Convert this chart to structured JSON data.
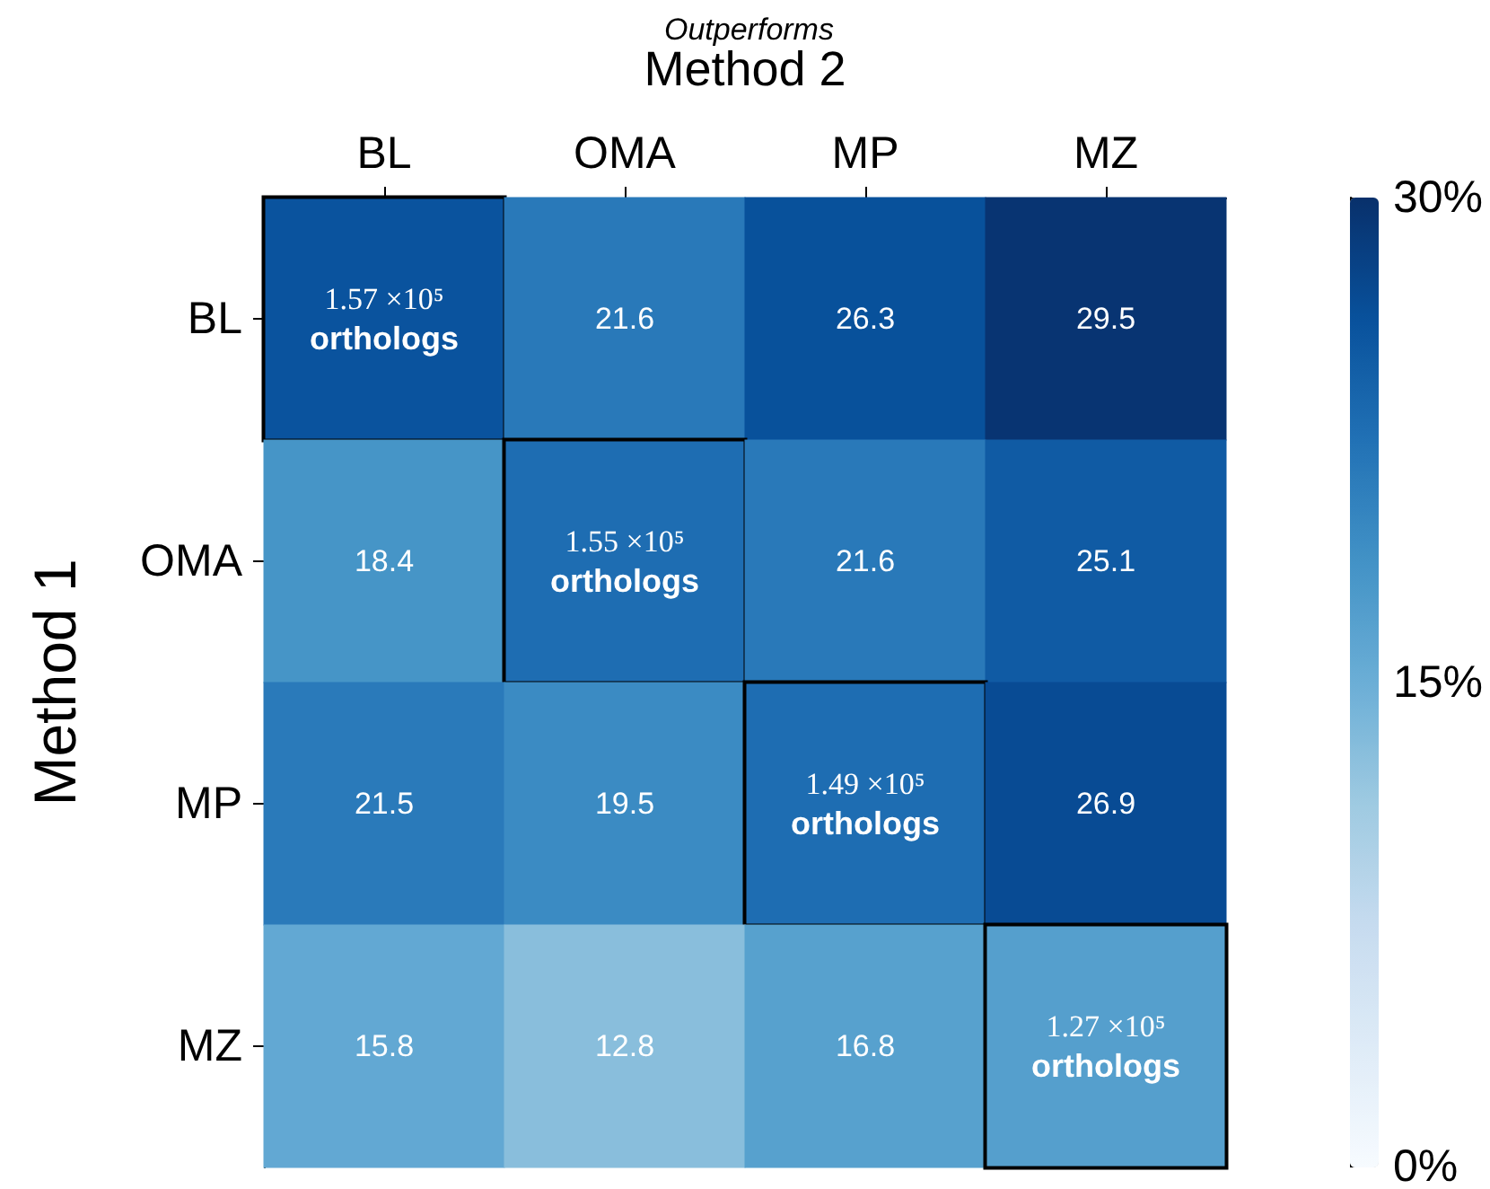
{
  "chart_data": {
    "type": "heatmap",
    "xlabel": "Method 2",
    "ylabel": "Method 1",
    "annotations": [
      "Outperforms"
    ],
    "categories": [
      "BL",
      "OMA",
      "MP",
      "MZ"
    ],
    "y_categories": [
      "BL",
      "OMA",
      "MP",
      "MZ"
    ],
    "cells": [
      [
        26,
        21.6,
        26.3,
        29.5
      ],
      [
        18.4,
        23,
        21.6,
        25.1
      ],
      [
        21.5,
        19.5,
        23,
        26.9
      ],
      [
        15.8,
        12.8,
        16.8,
        17
      ]
    ],
    "cell_labels": [
      [
        "1.57 ×10⁵\northologs",
        "21.6",
        "26.3",
        "29.5"
      ],
      [
        "18.4",
        "1.55 ×10⁵\northologs",
        "21.6",
        "25.1"
      ],
      [
        "21.5",
        "19.5",
        "1.49 ×10⁵\northologs",
        "26.9"
      ],
      [
        "15.8",
        "12.8",
        "16.8",
        "1.27 ×10⁵\northologs"
      ]
    ],
    "clim": [
      0,
      30
    ],
    "cticks": [
      {
        "value": 0,
        "label": "0%"
      },
      {
        "value": 15,
        "label": "15%"
      },
      {
        "value": 30,
        "label": "30%"
      }
    ]
  }
}
